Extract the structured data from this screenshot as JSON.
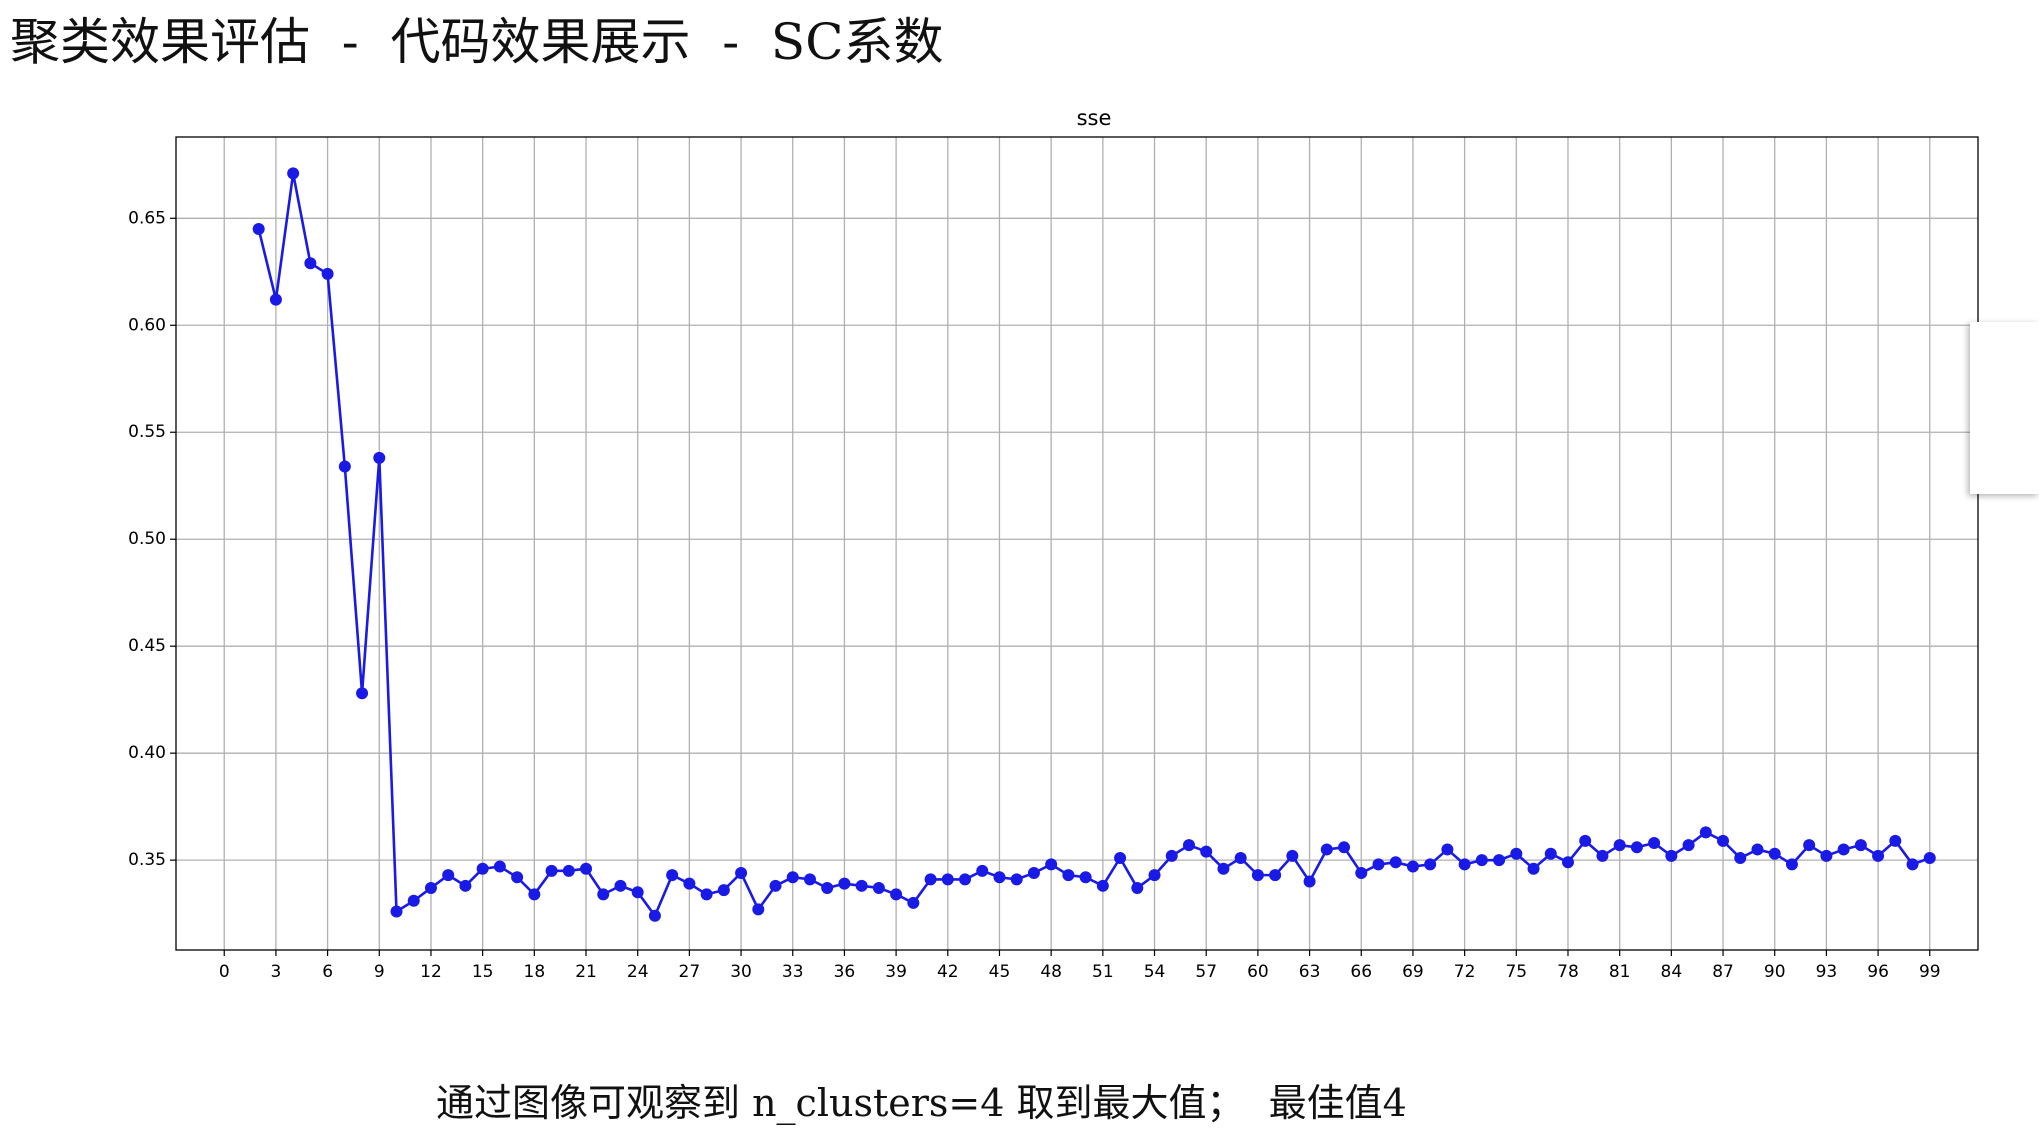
{
  "header": {
    "title": "聚类效果评估  -  代码效果展示  -  SC系数"
  },
  "chart_data": {
    "type": "line",
    "title": "sse",
    "color": "#1a1ae6",
    "grid": true,
    "x": [
      2,
      3,
      4,
      5,
      6,
      7,
      8,
      9,
      10,
      11,
      12,
      13,
      14,
      15,
      16,
      17,
      18,
      19,
      20,
      21,
      22,
      23,
      24,
      25,
      26,
      27,
      28,
      29,
      30,
      31,
      32,
      33,
      34,
      35,
      36,
      37,
      38,
      39,
      40,
      41,
      42,
      43,
      44,
      45,
      46,
      47,
      48,
      49,
      50,
      51,
      52,
      53,
      54,
      55,
      56,
      57,
      58,
      59,
      60,
      61,
      62,
      63,
      64,
      65,
      66,
      67,
      68,
      69,
      70,
      71,
      72,
      73,
      74,
      75,
      76,
      77,
      78,
      79,
      80,
      81,
      82,
      83,
      84,
      85,
      86,
      87,
      88,
      89,
      90,
      91,
      92,
      93,
      94,
      95,
      96,
      97,
      98,
      99
    ],
    "values": [
      0.645,
      0.612,
      0.671,
      0.629,
      0.624,
      0.534,
      0.428,
      0.538,
      0.326,
      0.331,
      0.337,
      0.343,
      0.338,
      0.346,
      0.347,
      0.342,
      0.334,
      0.345,
      0.345,
      0.346,
      0.334,
      0.338,
      0.335,
      0.324,
      0.343,
      0.339,
      0.334,
      0.336,
      0.344,
      0.327,
      0.338,
      0.342,
      0.341,
      0.337,
      0.339,
      0.338,
      0.337,
      0.334,
      0.33,
      0.341,
      0.341,
      0.341,
      0.345,
      0.342,
      0.341,
      0.344,
      0.348,
      0.343,
      0.342,
      0.338,
      0.351,
      0.337,
      0.343,
      0.352,
      0.357,
      0.354,
      0.346,
      0.351,
      0.343,
      0.343,
      0.352,
      0.34,
      0.355,
      0.356,
      0.344,
      0.348,
      0.349,
      0.347,
      0.348,
      0.355,
      0.348,
      0.35,
      0.35,
      0.353,
      0.346,
      0.353,
      0.349,
      0.359,
      0.352,
      0.357,
      0.356,
      0.358,
      0.352,
      0.357,
      0.363,
      0.359,
      0.351,
      0.355,
      0.353,
      0.348,
      0.357,
      0.352,
      0.355,
      0.357,
      0.352,
      0.359,
      0.348,
      0.351
    ],
    "xlim": [
      -2.8,
      101.8
    ],
    "xticks": [
      0,
      3,
      6,
      9,
      12,
      15,
      18,
      21,
      24,
      27,
      30,
      33,
      36,
      39,
      42,
      45,
      48,
      51,
      54,
      57,
      60,
      63,
      66,
      69,
      72,
      75,
      78,
      81,
      84,
      87,
      90,
      93,
      96,
      99
    ],
    "ylim": [
      0.308,
      0.688
    ],
    "yticks": [
      0.35,
      {
        "value": 0.4,
        "label": "0.40"
      },
      0.45,
      {
        "value": 0.5,
        "label": "0.50"
      },
      0.55,
      {
        "value": 0.6,
        "label": "0.60"
      },
      0.65
    ]
  },
  "footer": {
    "text": "通过图像可观察到 n_clusters=4 取到最大值；  最佳值4"
  }
}
